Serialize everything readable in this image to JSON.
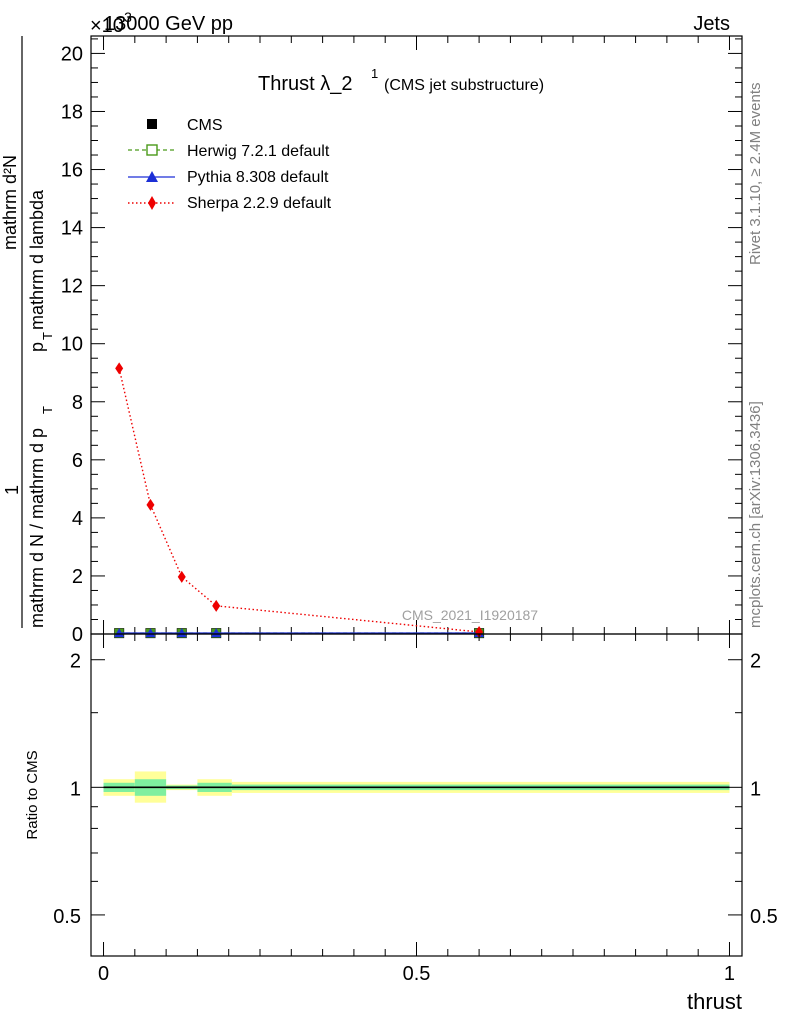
{
  "header": {
    "left": "13000 GeV pp",
    "right": "Jets",
    "exponent_prefix": "×10",
    "exponent_power": "−3"
  },
  "side": {
    "rivet": "Rivet 3.1.10, ≥ 2.4M events",
    "mcplots": "mcplots.cern.ch [arXiv:1306.3436]"
  },
  "chart_data": [
    {
      "type": "line",
      "title_main": "Thrust λ_2",
      "title_sup": "1",
      "title_note": "(CMS jet substructure)",
      "ylabel_one": "1",
      "ylabel_denominator": "mathrm d N / mathrm d p",
      "ylabel_numerator": "mathrm d²N",
      "ylabel_numerator_rest": "p",
      "ylabel_numerator_sub": "T",
      "ylabel_numerator_tail": "mathrm d lambda",
      "ylabel_denominator_sub": "T",
      "ylim": [
        0,
        20.6
      ],
      "xlim": [
        -0.02,
        1.02
      ],
      "y_ticks": [
        "0",
        "2",
        "4",
        "6",
        "8",
        "10",
        "12",
        "14",
        "16",
        "18",
        "20"
      ],
      "watermark": "CMS_2021_I1920187",
      "legend": [
        {
          "label": "CMS",
          "color": "#000000",
          "marker": "square-filled",
          "line": "none"
        },
        {
          "label": "Herwig 7.2.1 default",
          "color": "#4a9a1a",
          "marker": "square-open",
          "line": "dashed"
        },
        {
          "label": "Pythia 8.308 default",
          "color": "#1c2fd6",
          "marker": "triangle",
          "line": "solid"
        },
        {
          "label": "Sherpa 2.2.9 default",
          "color": "#ee0000",
          "marker": "diamond",
          "line": "dotted"
        }
      ],
      "series": [
        {
          "name": "CMS",
          "x": [
            0.025,
            0.075,
            0.125,
            0.18,
            0.6
          ],
          "y": [
            0.03,
            0.03,
            0.03,
            0.03,
            0.03
          ]
        },
        {
          "name": "Herwig 7.2.1 default",
          "x": [
            0.025,
            0.075,
            0.125,
            0.18,
            0.6
          ],
          "y": [
            0.03,
            0.03,
            0.03,
            0.03,
            0.03
          ]
        },
        {
          "name": "Pythia 8.308 default",
          "x": [
            0.025,
            0.075,
            0.125,
            0.18,
            0.6
          ],
          "y": [
            0.03,
            0.03,
            0.03,
            0.03,
            0.03
          ]
        },
        {
          "name": "Sherpa 2.2.9 default",
          "x": [
            0.025,
            0.075,
            0.125,
            0.18,
            0.6
          ],
          "y": [
            9.15,
            4.45,
            1.97,
            0.97,
            0.07
          ]
        }
      ]
    },
    {
      "type": "line",
      "ylabel": "Ratio to CMS",
      "xlabel": "thrust",
      "ylim": [
        0.4,
        2.3
      ],
      "y_scale": "log",
      "xlim": [
        -0.02,
        1.02
      ],
      "y_ticks": [
        "0.5",
        "1",
        "2"
      ],
      "y_tick_values": [
        0.5,
        1,
        2
      ],
      "x_ticks": [
        "0",
        "0.5",
        "1"
      ],
      "x_tick_values": [
        0,
        0.5,
        1
      ],
      "bands": [
        {
          "x0": 0.0,
          "x1": 0.05,
          "yellow": [
            0.955,
            1.045
          ],
          "green": [
            0.975,
            1.025
          ]
        },
        {
          "x0": 0.05,
          "x1": 0.1,
          "yellow": [
            0.92,
            1.09
          ],
          "green": [
            0.955,
            1.045
          ]
        },
        {
          "x0": 0.1,
          "x1": 0.15,
          "yellow": [
            0.985,
            1.015
          ],
          "green": [
            0.99,
            1.01
          ]
        },
        {
          "x0": 0.15,
          "x1": 0.205,
          "yellow": [
            0.955,
            1.045
          ],
          "green": [
            0.975,
            1.025
          ]
        },
        {
          "x0": 0.205,
          "x1": 1.0,
          "yellow": [
            0.97,
            1.03
          ],
          "green": [
            0.985,
            1.015
          ]
        }
      ],
      "reference": 1.0
    }
  ]
}
